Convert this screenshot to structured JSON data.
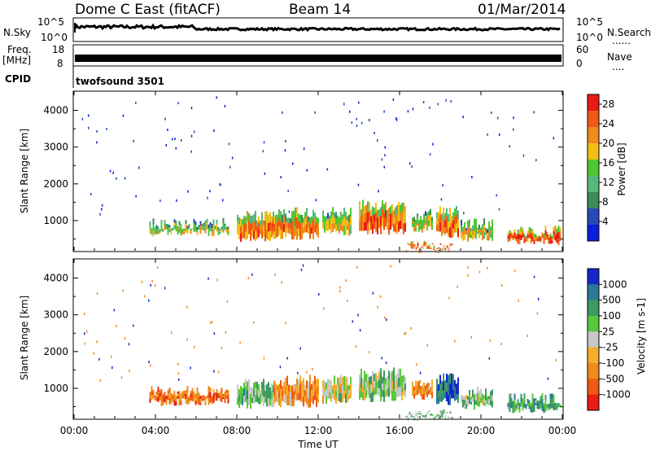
{
  "header": {
    "radar": "Dome C East (fitACF)",
    "beam": "Beam 14",
    "date": "01/Mar/2014"
  },
  "noise_panel": {
    "left_label": "N.Sky",
    "right_label": "N.Search",
    "left_ticks": [
      "10^5",
      "10^0"
    ],
    "right_ticks": [
      "10^5",
      "10^0"
    ],
    "right_marker": "......"
  },
  "freq_panel": {
    "left_label_1": "Freq.",
    "left_label_2": "[MHz]",
    "right_label": "Nave",
    "left_ticks": [
      "18",
      "8"
    ],
    "right_ticks": [
      "60",
      "0"
    ],
    "right_marker": "...."
  },
  "cpid_panel": {
    "label": "CPID",
    "program": "twofsound 3501"
  },
  "colors": {
    "power": [
      "#0a1edc",
      "#2848b8",
      "#3c8a5a",
      "#58b87a",
      "#4ec832",
      "#f2be14",
      "#f08a1c",
      "#f05a14",
      "#e81c14"
    ],
    "velocity": [
      "#e81c14",
      "#f05a14",
      "#f08a1c",
      "#f5ad2c",
      "#c8c8c8",
      "#5ac83c",
      "#3c9a62",
      "#2c7a98",
      "#1428c8"
    ]
  },
  "chart_data": [
    {
      "type": "heatmap",
      "name": "power-panel",
      "xlabel": "",
      "ylabel": "Slant Range [km]",
      "xlim": [
        0,
        24
      ],
      "ylim": [
        180,
        4500
      ],
      "yticks": [
        1000,
        2000,
        3000,
        4000
      ],
      "colorbar_label": "Power [dB]",
      "colorbar_ticks": [
        4,
        8,
        12,
        16,
        20,
        24,
        28
      ],
      "colorbar_range": [
        0,
        30
      ],
      "echo_regions": [
        {
          "t": [
            3.7,
            7.6
          ],
          "r": [
            600,
            1050
          ],
          "level": 0.55
        },
        {
          "t": [
            8.0,
            9.8
          ],
          "r": [
            450,
            1250
          ],
          "level": 0.75
        },
        {
          "t": [
            9.8,
            12.0
          ],
          "r": [
            500,
            1350
          ],
          "level": 0.72
        },
        {
          "t": [
            12.2,
            13.6
          ],
          "r": [
            600,
            1350
          ],
          "level": 0.6
        },
        {
          "t": [
            14.0,
            16.3
          ],
          "r": [
            650,
            1550
          ],
          "level": 0.8
        },
        {
          "t": [
            16.6,
            17.6
          ],
          "r": [
            700,
            1300
          ],
          "level": 0.6
        },
        {
          "t": [
            17.8,
            18.9
          ],
          "r": [
            550,
            1400
          ],
          "level": 0.78
        },
        {
          "t": [
            16.3,
            18.6
          ],
          "r": [
            220,
            420
          ],
          "level": 0.82
        },
        {
          "t": [
            19.0,
            20.6
          ],
          "r": [
            450,
            1050
          ],
          "level": 0.6
        },
        {
          "t": [
            21.3,
            23.9
          ],
          "r": [
            350,
            850
          ],
          "level": 0.82
        }
      ]
    },
    {
      "type": "heatmap",
      "name": "velocity-panel",
      "xlabel": "Time UT",
      "ylabel": "Slant Range [km]",
      "xlim": [
        0,
        24
      ],
      "ylim": [
        180,
        4500
      ],
      "xticks": [
        "00:00",
        "04:00",
        "08:00",
        "12:00",
        "16:00",
        "20:00",
        "00:00"
      ],
      "yticks": [
        1000,
        2000,
        3000,
        4000
      ],
      "colorbar_label": "Velocity [m s-1]",
      "colorbar_ticks": [
        -1000,
        -500,
        -100,
        -25,
        25,
        100,
        500,
        1000
      ],
      "echo_regions": [
        {
          "t": [
            3.7,
            7.6
          ],
          "r": [
            550,
            1050
          ],
          "level": 0.22
        },
        {
          "t": [
            8.0,
            9.8
          ],
          "r": [
            450,
            1250
          ],
          "level": 0.62
        },
        {
          "t": [
            9.8,
            12.0
          ],
          "r": [
            500,
            1350
          ],
          "level": 0.32
        },
        {
          "t": [
            12.2,
            13.6
          ],
          "r": [
            600,
            1350
          ],
          "level": 0.5
        },
        {
          "t": [
            14.0,
            16.3
          ],
          "r": [
            650,
            1550
          ],
          "level": 0.58
        },
        {
          "t": [
            16.6,
            17.6
          ],
          "r": [
            700,
            1300
          ],
          "level": 0.28
        },
        {
          "t": [
            17.8,
            18.9
          ],
          "r": [
            550,
            1400
          ],
          "level": 0.85
        },
        {
          "t": [
            16.3,
            18.6
          ],
          "r": [
            220,
            420
          ],
          "level": 0.68
        },
        {
          "t": [
            19.0,
            20.6
          ],
          "r": [
            450,
            1050
          ],
          "level": 0.6
        },
        {
          "t": [
            21.3,
            23.9
          ],
          "r": [
            350,
            850
          ],
          "level": 0.7
        }
      ]
    }
  ]
}
